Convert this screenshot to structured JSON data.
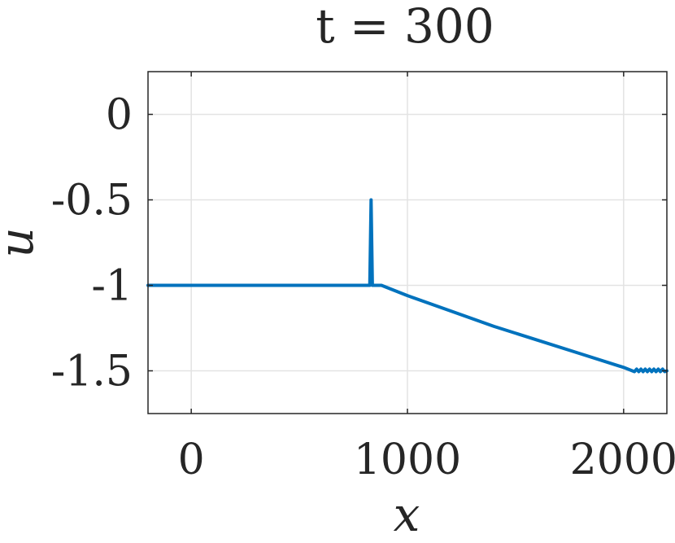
{
  "chart_data": {
    "type": "line",
    "title": "t = 300",
    "xlabel": "x",
    "ylabel": "u",
    "xlim": [
      -200,
      2200
    ],
    "ylim": [
      -1.75,
      0.25
    ],
    "xticks": [
      0,
      1000,
      2000
    ],
    "xtick_labels": [
      "0",
      "1000",
      "2000"
    ],
    "yticks": [
      0,
      -0.5,
      -1,
      -1.5
    ],
    "ytick_labels": [
      "0",
      "-0.5",
      "-1",
      "-1.5"
    ],
    "grid": true,
    "colors": {
      "series": "#0072bd",
      "axis": "#262626",
      "grid": "#e3e3e3"
    },
    "series": [
      {
        "x": [
          -200,
          0,
          500,
          820,
          826,
          829,
          832,
          835,
          838,
          842,
          860,
          880,
          900,
          1000,
          1200,
          1400,
          1600,
          1800,
          2000,
          2050,
          2060,
          2070,
          2080,
          2090,
          2100,
          2110,
          2120,
          2130,
          2140,
          2150,
          2160,
          2170,
          2180,
          2190,
          2200
        ],
        "y": [
          -1.0,
          -1.0,
          -1.0,
          -1.0,
          -1.0,
          -0.75,
          -0.5,
          -0.75,
          -1.0,
          -1.0,
          -1.0,
          -1.0,
          -1.01,
          -1.06,
          -1.15,
          -1.24,
          -1.32,
          -1.4,
          -1.48,
          -1.505,
          -1.49,
          -1.505,
          -1.49,
          -1.505,
          -1.49,
          -1.505,
          -1.49,
          -1.505,
          -1.49,
          -1.505,
          -1.49,
          -1.505,
          -1.49,
          -1.505,
          -1.5
        ]
      }
    ]
  }
}
